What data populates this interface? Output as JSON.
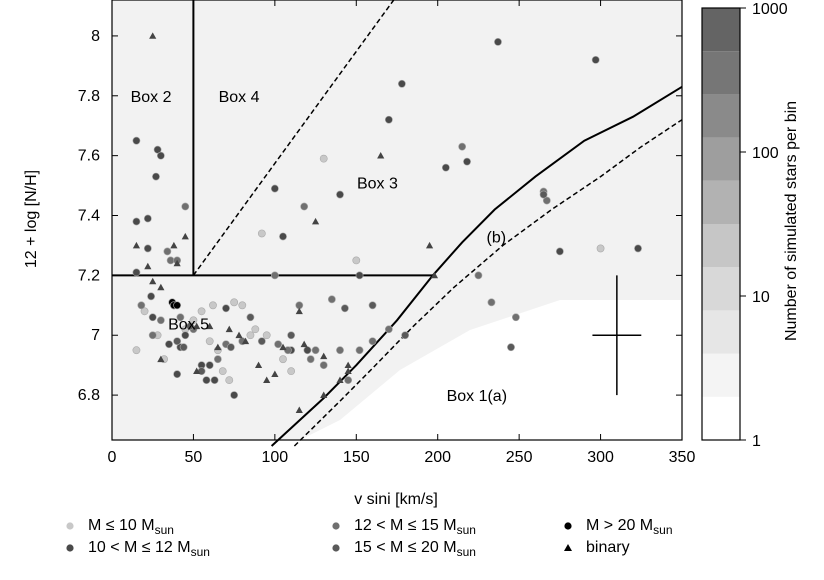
{
  "chart_data": {
    "type": "scatter",
    "xlabel": "v sini [km/s]",
    "ylabel": "12 + log [N/H]",
    "xlim": [
      0,
      350
    ],
    "ylim": [
      6.65,
      8.12
    ],
    "xticks": [
      0,
      50,
      100,
      150,
      200,
      250,
      300,
      350
    ],
    "yticks": [
      6.8,
      7,
      7.2,
      7.4,
      7.6,
      7.8,
      8
    ],
    "grid": false,
    "colorbar": {
      "label": "Number of simulated stars per bin",
      "scale": "log",
      "range": [
        1,
        1000
      ],
      "tick_labels": [
        "1",
        "10",
        "100",
        "1000"
      ],
      "tick_values": [
        1,
        10,
        100,
        1000
      ]
    },
    "box_labels": [
      {
        "text": "Box 2",
        "x": 24,
        "y": 7.8
      },
      {
        "text": "Box 4",
        "x": 78,
        "y": 7.8
      },
      {
        "text": "Box 3",
        "x": 163,
        "y": 7.51
      },
      {
        "text": "(b)",
        "x": 236,
        "y": 7.33
      },
      {
        "text": "Box 5",
        "x": 47,
        "y": 7.04
      },
      {
        "text": "Box 1(a)",
        "x": 224,
        "y": 6.8
      }
    ],
    "boundaries": [
      {
        "name": "box2-box4-divider",
        "style": "solid",
        "points": [
          [
            50,
            8.12
          ],
          [
            50,
            7.2
          ]
        ]
      },
      {
        "name": "box5-top",
        "style": "solid",
        "points": [
          [
            0,
            7.2
          ],
          [
            197,
            7.2
          ]
        ]
      },
      {
        "name": "box4-box3-divider",
        "style": "dashed",
        "points": [
          [
            50,
            7.2
          ],
          [
            173,
            8.12
          ]
        ]
      },
      {
        "name": "curve-a",
        "style": "solid",
        "points": [
          [
            98,
            6.63
          ],
          [
            130,
            6.79
          ],
          [
            150,
            6.9
          ],
          [
            175,
            7.05
          ],
          [
            197,
            7.2
          ],
          [
            215,
            7.31
          ],
          [
            235,
            7.42
          ],
          [
            260,
            7.53
          ],
          [
            290,
            7.65
          ],
          [
            320,
            7.73
          ],
          [
            350,
            7.83
          ]
        ]
      },
      {
        "name": "curve-b",
        "style": "dashed",
        "points": [
          [
            112,
            6.63
          ],
          [
            140,
            6.78
          ],
          [
            160,
            6.89
          ],
          [
            185,
            7.03
          ],
          [
            210,
            7.16
          ],
          [
            240,
            7.3
          ],
          [
            270,
            7.42
          ],
          [
            300,
            7.53
          ],
          [
            325,
            7.63
          ],
          [
            350,
            7.72
          ]
        ]
      }
    ],
    "error_bar": {
      "x": 310,
      "y": 7.0,
      "dx": 15,
      "dy": 0.2
    },
    "legend": {
      "placement": "bottom",
      "entries": [
        {
          "label": "M ≤ 10 M",
          "sub": "sun",
          "marker": "circle",
          "color": "#c8c8c8"
        },
        {
          "label": "10 < M ≤ 12 M",
          "sub": "sun",
          "marker": "circle",
          "color": "#4a4a4a"
        },
        {
          "label": "12 < M ≤ 15 M",
          "sub": "sun",
          "marker": "circle",
          "color": "#707070"
        },
        {
          "label": "15 < M ≤ 20 M",
          "sub": "sun",
          "marker": "circle",
          "color": "#5a5a5a"
        },
        {
          "label": "M > 20 M",
          "sub": "sun",
          "marker": "circle",
          "color": "#000000"
        },
        {
          "label": "binary",
          "sub": "",
          "marker": "triangle",
          "color": "#000000"
        }
      ]
    },
    "series": [
      {
        "name": "M ≤ 10 Msun",
        "color": "#c8c8c8",
        "points": [
          [
            15,
            6.95
          ],
          [
            20,
            7.08
          ],
          [
            28,
            7.0
          ],
          [
            32,
            6.92
          ],
          [
            38,
            7.1
          ],
          [
            45,
            7.02
          ],
          [
            50,
            7.05
          ],
          [
            55,
            7.08
          ],
          [
            60,
            6.98
          ],
          [
            62,
            7.1
          ],
          [
            65,
            6.95
          ],
          [
            68,
            6.88
          ],
          [
            72,
            6.85
          ],
          [
            75,
            7.11
          ],
          [
            80,
            7.1
          ],
          [
            85,
            7.0
          ],
          [
            88,
            7.02
          ],
          [
            92,
            7.34
          ],
          [
            95,
            7.0
          ],
          [
            105,
            6.92
          ],
          [
            110,
            6.88
          ],
          [
            130,
            7.59
          ],
          [
            150,
            7.25
          ],
          [
            300,
            7.29
          ]
        ]
      },
      {
        "name": "10 < M ≤ 12 Msun",
        "color": "#4a4a4a",
        "points": [
          [
            15,
            7.65
          ],
          [
            15,
            7.38
          ],
          [
            15,
            7.21
          ],
          [
            22,
            7.39
          ],
          [
            22,
            7.29
          ],
          [
            24,
            7.13
          ],
          [
            25,
            7.06
          ],
          [
            27,
            7.53
          ],
          [
            28,
            7.62
          ],
          [
            30,
            7.6
          ],
          [
            35,
            6.97
          ],
          [
            38,
            7.1
          ],
          [
            40,
            6.87
          ],
          [
            42,
            6.96
          ],
          [
            45,
            7.0
          ],
          [
            55,
            6.9
          ],
          [
            58,
            6.85
          ],
          [
            60,
            6.9
          ],
          [
            63,
            6.85
          ],
          [
            70,
            7.09
          ],
          [
            75,
            6.8
          ],
          [
            100,
            7.49
          ],
          [
            105,
            7.33
          ],
          [
            110,
            6.95
          ],
          [
            120,
            6.95
          ],
          [
            140,
            7.47
          ],
          [
            152,
            7.2
          ],
          [
            170,
            7.72
          ],
          [
            178,
            7.84
          ],
          [
            205,
            7.56
          ],
          [
            218,
            7.58
          ],
          [
            237,
            7.98
          ],
          [
            275,
            7.28
          ],
          [
            297,
            7.92
          ],
          [
            323,
            7.29
          ]
        ]
      },
      {
        "name": "12 < M ≤ 15 Msun",
        "color": "#707070",
        "points": [
          [
            18,
            7.1
          ],
          [
            25,
            7.0
          ],
          [
            30,
            7.05
          ],
          [
            34,
            7.28
          ],
          [
            36,
            7.25
          ],
          [
            40,
            7.25
          ],
          [
            42,
            7.06
          ],
          [
            45,
            7.43
          ],
          [
            50,
            7.02
          ],
          [
            65,
            6.92
          ],
          [
            70,
            6.97
          ],
          [
            80,
            6.98
          ],
          [
            100,
            7.2
          ],
          [
            102,
            6.97
          ],
          [
            108,
            6.95
          ],
          [
            115,
            7.1
          ],
          [
            118,
            7.43
          ],
          [
            122,
            6.92
          ],
          [
            125,
            6.95
          ],
          [
            130,
            6.9
          ],
          [
            135,
            7.12
          ],
          [
            140,
            6.95
          ],
          [
            145,
            6.85
          ],
          [
            152,
            6.95
          ],
          [
            160,
            6.98
          ],
          [
            170,
            7.02
          ],
          [
            215,
            7.63
          ],
          [
            225,
            7.2
          ],
          [
            233,
            7.11
          ],
          [
            248,
            7.06
          ],
          [
            265,
            7.48
          ],
          [
            267,
            7.45
          ]
        ]
      },
      {
        "name": "15 < M ≤ 20 Msun",
        "color": "#5a5a5a",
        "points": [
          [
            40,
            6.98
          ],
          [
            44,
            6.96
          ],
          [
            48,
            7.03
          ],
          [
            55,
            6.88
          ],
          [
            73,
            6.96
          ],
          [
            85,
            7.06
          ],
          [
            92,
            6.98
          ],
          [
            110,
            7.0
          ],
          [
            143,
            7.09
          ],
          [
            160,
            7.1
          ],
          [
            180,
            7.0
          ],
          [
            245,
            6.96
          ],
          [
            265,
            7.47
          ]
        ]
      },
      {
        "name": "M > 20 Msun",
        "color": "#000000",
        "points": [
          [
            37,
            7.11
          ],
          [
            38,
            7.1
          ],
          [
            40,
            7.1
          ]
        ]
      },
      {
        "name": "binary",
        "marker": "triangle",
        "points": [
          [
            25,
            8.0
          ],
          [
            15,
            7.3
          ],
          [
            25,
            7.18
          ],
          [
            22,
            7.23
          ],
          [
            38,
            7.3
          ],
          [
            40,
            7.24
          ],
          [
            30,
            7.16
          ],
          [
            45,
            7.33
          ],
          [
            52,
            7.03
          ],
          [
            60,
            7.03
          ],
          [
            65,
            6.96
          ],
          [
            72,
            7.02
          ],
          [
            78,
            7.0
          ],
          [
            82,
            6.98
          ],
          [
            90,
            6.9
          ],
          [
            95,
            6.85
          ],
          [
            100,
            6.87
          ],
          [
            105,
            6.96
          ],
          [
            115,
            7.08
          ],
          [
            118,
            6.97
          ],
          [
            125,
            7.38
          ],
          [
            130,
            6.93
          ],
          [
            140,
            6.85
          ],
          [
            145,
            6.88
          ],
          [
            165,
            7.6
          ],
          [
            195,
            7.3
          ],
          [
            198,
            7.2
          ],
          [
            115,
            6.75
          ],
          [
            130,
            6.8
          ],
          [
            145,
            6.9
          ],
          [
            30,
            6.92
          ],
          [
            52,
            6.88
          ]
        ]
      }
    ]
  }
}
